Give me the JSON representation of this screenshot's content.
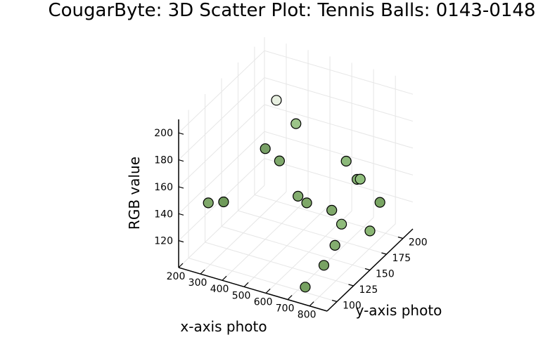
{
  "chart_data": {
    "type": "scatter",
    "title": "CougarByte: 3D Scatter Plot: Tennis Balls: 0143-0148",
    "xlabel": "x-axis photo",
    "ylabel": "y-axis photo",
    "zlabel": "RGB value",
    "x_ticks": [
      200,
      300,
      400,
      500,
      600,
      700,
      800
    ],
    "y_ticks": [
      100,
      125,
      150,
      175,
      200
    ],
    "z_ticks": [
      120,
      140,
      160,
      180,
      200
    ],
    "xlim": [
      200,
      880
    ],
    "ylim": [
      85,
      215
    ],
    "zlim": [
      100,
      210
    ],
    "grid": true,
    "legend": "none",
    "points": [
      {
        "x": 230,
        "y": 120,
        "z": 133,
        "color": "#7fa86a"
      },
      {
        "x": 285,
        "y": 125,
        "z": 134,
        "color": "#6f9a5a"
      },
      {
        "x": 300,
        "y": 200,
        "z": 175,
        "color": "#e7efe0"
      },
      {
        "x": 420,
        "y": 190,
        "z": 168,
        "color": "#9cc489"
      },
      {
        "x": 325,
        "y": 175,
        "z": 152,
        "color": "#78a066"
      },
      {
        "x": 390,
        "y": 175,
        "z": 146,
        "color": "#7ea86b"
      },
      {
        "x": 520,
        "y": 160,
        "z": 133,
        "color": "#83ad6f"
      },
      {
        "x": 575,
        "y": 155,
        "z": 133,
        "color": "#7ea768"
      },
      {
        "x": 620,
        "y": 200,
        "z": 145,
        "color": "#8cb97a"
      },
      {
        "x": 700,
        "y": 190,
        "z": 140,
        "color": "#86b173"
      },
      {
        "x": 760,
        "y": 175,
        "z": 150,
        "color": "#8fbe7c"
      },
      {
        "x": 690,
        "y": 155,
        "z": 133,
        "color": "#7fa86a"
      },
      {
        "x": 780,
        "y": 140,
        "z": 134,
        "color": "#8fbb7b"
      },
      {
        "x": 820,
        "y": 185,
        "z": 131,
        "color": "#79a563"
      },
      {
        "x": 880,
        "y": 150,
        "z": 129,
        "color": "#8ab674"
      },
      {
        "x": 795,
        "y": 125,
        "z": 126,
        "color": "#83ad6f"
      },
      {
        "x": 790,
        "y": 110,
        "z": 118,
        "color": "#78a263"
      },
      {
        "x": 765,
        "y": 90,
        "z": 110,
        "color": "#76a161"
      }
    ]
  }
}
